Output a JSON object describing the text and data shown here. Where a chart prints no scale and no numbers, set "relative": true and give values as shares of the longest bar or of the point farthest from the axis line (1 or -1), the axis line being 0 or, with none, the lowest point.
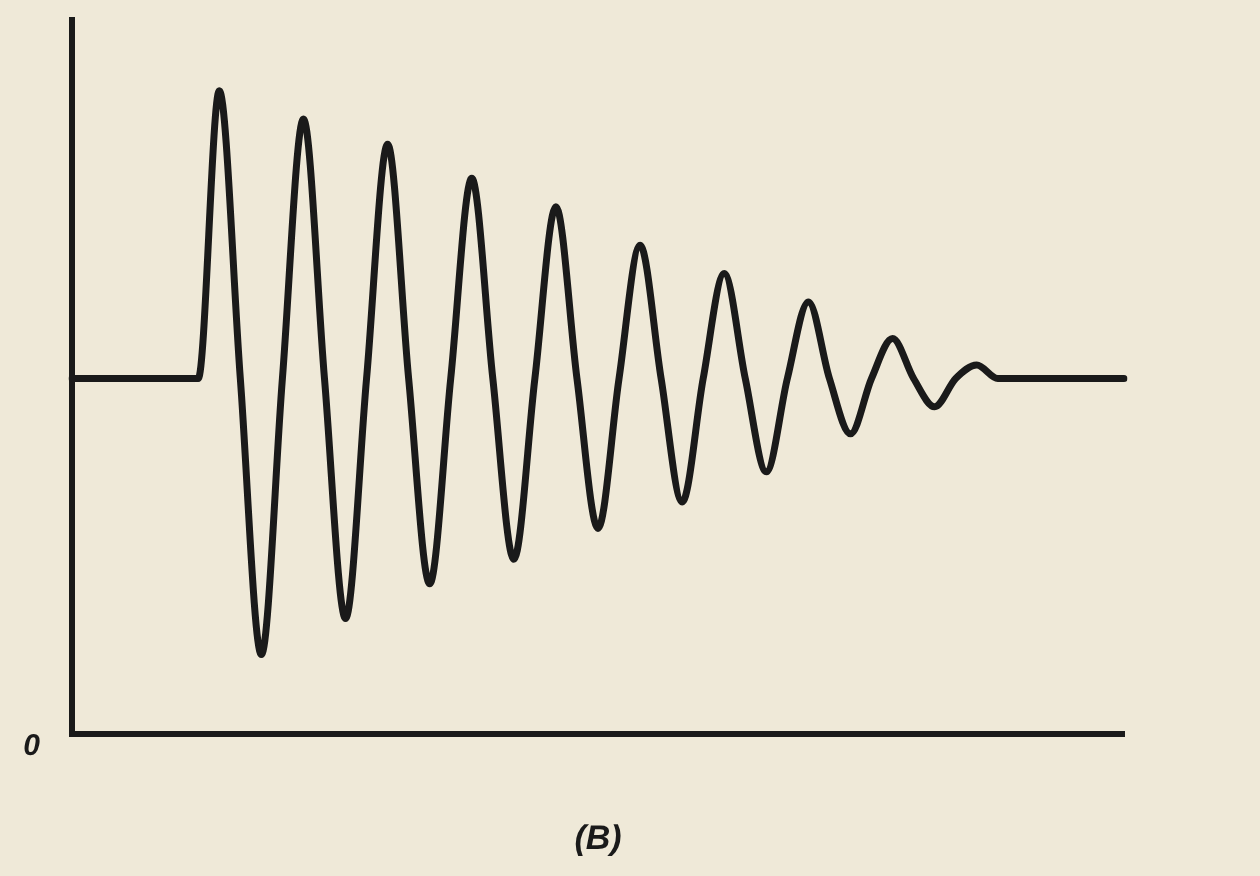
{
  "chart_data": {
    "type": "line",
    "relative": true,
    "title": "(B)",
    "annotations": [
      "0"
    ],
    "legend": false,
    "grid": false,
    "marker": "none",
    "categories": [
      null,
      null,
      null,
      null,
      null,
      null,
      null,
      null,
      null,
      null,
      null,
      null,
      null,
      null,
      null,
      null,
      null,
      null,
      null,
      null,
      null,
      null,
      null,
      null,
      null,
      null,
      null,
      null,
      null,
      null,
      null,
      null,
      null,
      null,
      null,
      null,
      null,
      null,
      null,
      null,
      null,
      null,
      null,
      null,
      null,
      null,
      null,
      null,
      null,
      null,
      null
    ],
    "series": [
      {
        "color": "#1a1a1a",
        "values": [
          0.553,
          0.553,
          0.553,
          0.553,
          0.553,
          0.553,
          0.553,
          1.0,
          0.553,
          0.124,
          0.553,
          0.956,
          0.553,
          0.18,
          0.553,
          0.917,
          0.553,
          0.234,
          0.553,
          0.864,
          0.553,
          0.272,
          0.553,
          0.82,
          0.553,
          0.32,
          0.553,
          0.76,
          0.553,
          0.361,
          0.553,
          0.716,
          0.553,
          0.408,
          0.553,
          0.672,
          0.553,
          0.467,
          0.553,
          0.615,
          0.553,
          0.509,
          0.553,
          0.574,
          0.553,
          0.553,
          0.553,
          0.553,
          0.553,
          0.553,
          0.553
        ]
      }
    ]
  }
}
